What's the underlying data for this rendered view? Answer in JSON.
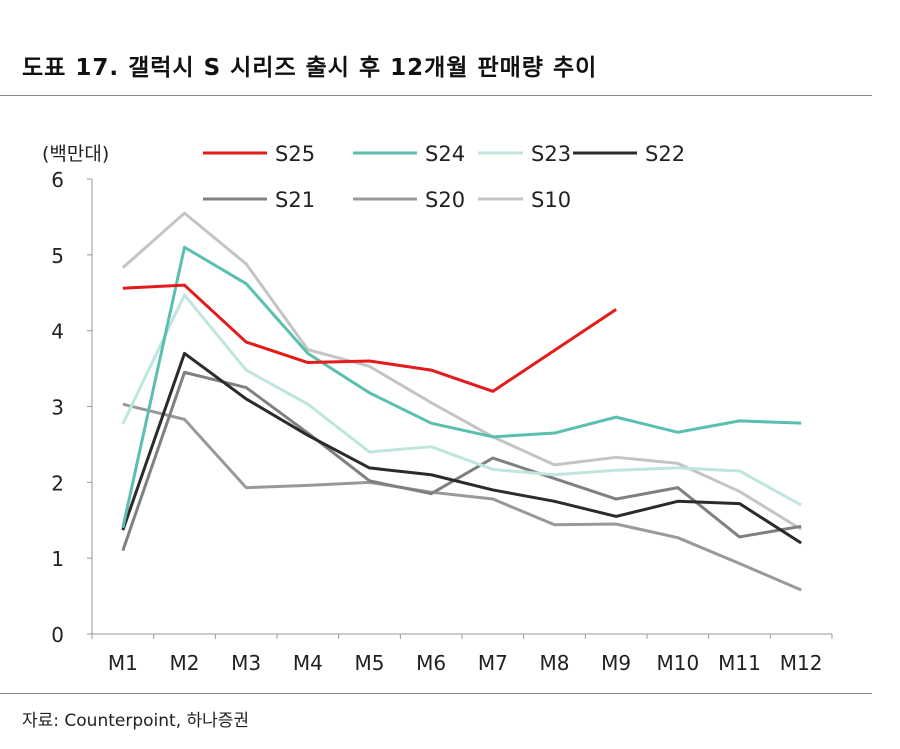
{
  "title": "도표 17. 갤럭시 S 시리즈 출시 후 12개월 판매량 추이",
  "source": "자료: Counterpoint, 하나증권",
  "chart_data": {
    "type": "line",
    "title": "도표 17. 갤럭시 S 시리즈 출시 후 12개월 판매량 추이",
    "ylabel": "(백만대)",
    "xlabel": "",
    "ylim": [
      0,
      6
    ],
    "yticks": [
      0,
      1,
      2,
      3,
      4,
      5,
      6
    ],
    "grid": false,
    "legend": "top",
    "categories": [
      "M1",
      "M2",
      "M3",
      "M4",
      "M5",
      "M6",
      "M7",
      "M8",
      "M9",
      "M10",
      "M11",
      "M12"
    ],
    "series": [
      {
        "name": "S25",
        "color": "#e31b1b",
        "values": [
          4.56,
          4.6,
          3.85,
          3.58,
          3.6,
          3.48,
          3.2,
          3.74,
          4.28,
          null,
          null,
          null
        ]
      },
      {
        "name": "S24",
        "color": "#5bbfb0",
        "values": [
          1.4,
          5.1,
          4.62,
          3.7,
          3.18,
          2.78,
          2.6,
          2.65,
          2.86,
          2.66,
          2.81,
          2.78
        ]
      },
      {
        "name": "S23",
        "color": "#bfe5df",
        "values": [
          2.77,
          4.47,
          3.48,
          3.03,
          2.4,
          2.47,
          2.17,
          2.1,
          2.16,
          2.19,
          2.15,
          1.7
        ]
      },
      {
        "name": "S22",
        "color": "#2b2b2b",
        "values": [
          1.37,
          3.7,
          3.1,
          2.62,
          2.19,
          2.1,
          1.9,
          1.75,
          1.55,
          1.75,
          1.72,
          1.2
        ]
      },
      {
        "name": "S21",
        "color": "#808080",
        "values": [
          1.1,
          3.45,
          3.25,
          2.65,
          2.02,
          1.85,
          2.32,
          2.05,
          1.78,
          1.93,
          1.28,
          1.42
        ]
      },
      {
        "name": "S20",
        "color": "#999999",
        "values": [
          3.03,
          2.83,
          1.93,
          1.96,
          2.0,
          1.87,
          1.78,
          1.44,
          1.45,
          1.27,
          0.93,
          0.58
        ]
      },
      {
        "name": "S10",
        "color": "#c4c4c4",
        "values": [
          4.83,
          5.55,
          4.88,
          3.75,
          3.53,
          3.05,
          2.6,
          2.23,
          2.33,
          2.25,
          1.88,
          1.38
        ]
      }
    ]
  }
}
